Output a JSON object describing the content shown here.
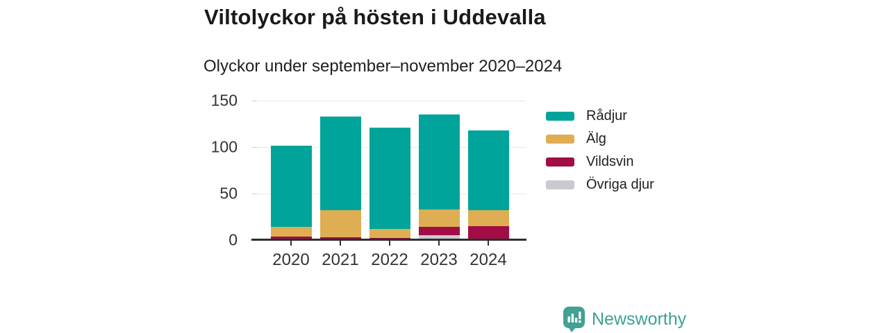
{
  "header": {
    "title": "Viltolyckor på hösten i Uddevalla",
    "subtitle": "Olyckor under september–november 2020–2024"
  },
  "chart_data": {
    "type": "bar",
    "subtype": "stacked-vertical",
    "categories": [
      "2020",
      "2021",
      "2022",
      "2023",
      "2024"
    ],
    "series": [
      {
        "name": "Rådjur",
        "color": "#00a49a",
        "values": [
          88,
          101,
          109,
          102,
          86
        ]
      },
      {
        "name": "Älg",
        "color": "#dfae53",
        "values": [
          10,
          29,
          10,
          19,
          17
        ]
      },
      {
        "name": "Vildsvin",
        "color": "#a10d44",
        "values": [
          4,
          3,
          2,
          9,
          14
        ]
      },
      {
        "name": "Övriga djur",
        "color": "#c9c9d1",
        "values": [
          0,
          0,
          0,
          5,
          1
        ]
      }
    ],
    "stack_order_bottom_to_top": [
      "Övriga djur",
      "Vildsvin",
      "Älg",
      "Rådjur"
    ],
    "totals": [
      102,
      133,
      121,
      135,
      118
    ],
    "y_ticks": [
      0,
      50,
      100,
      150
    ],
    "ylim": [
      0,
      150
    ],
    "grid": true,
    "legend_position": "right",
    "axis_color": "#2e2e2e",
    "gridline_color": "#e8e8e8",
    "tick_label_color": "#333333"
  },
  "footer": {
    "brand": "Newsworthy"
  }
}
